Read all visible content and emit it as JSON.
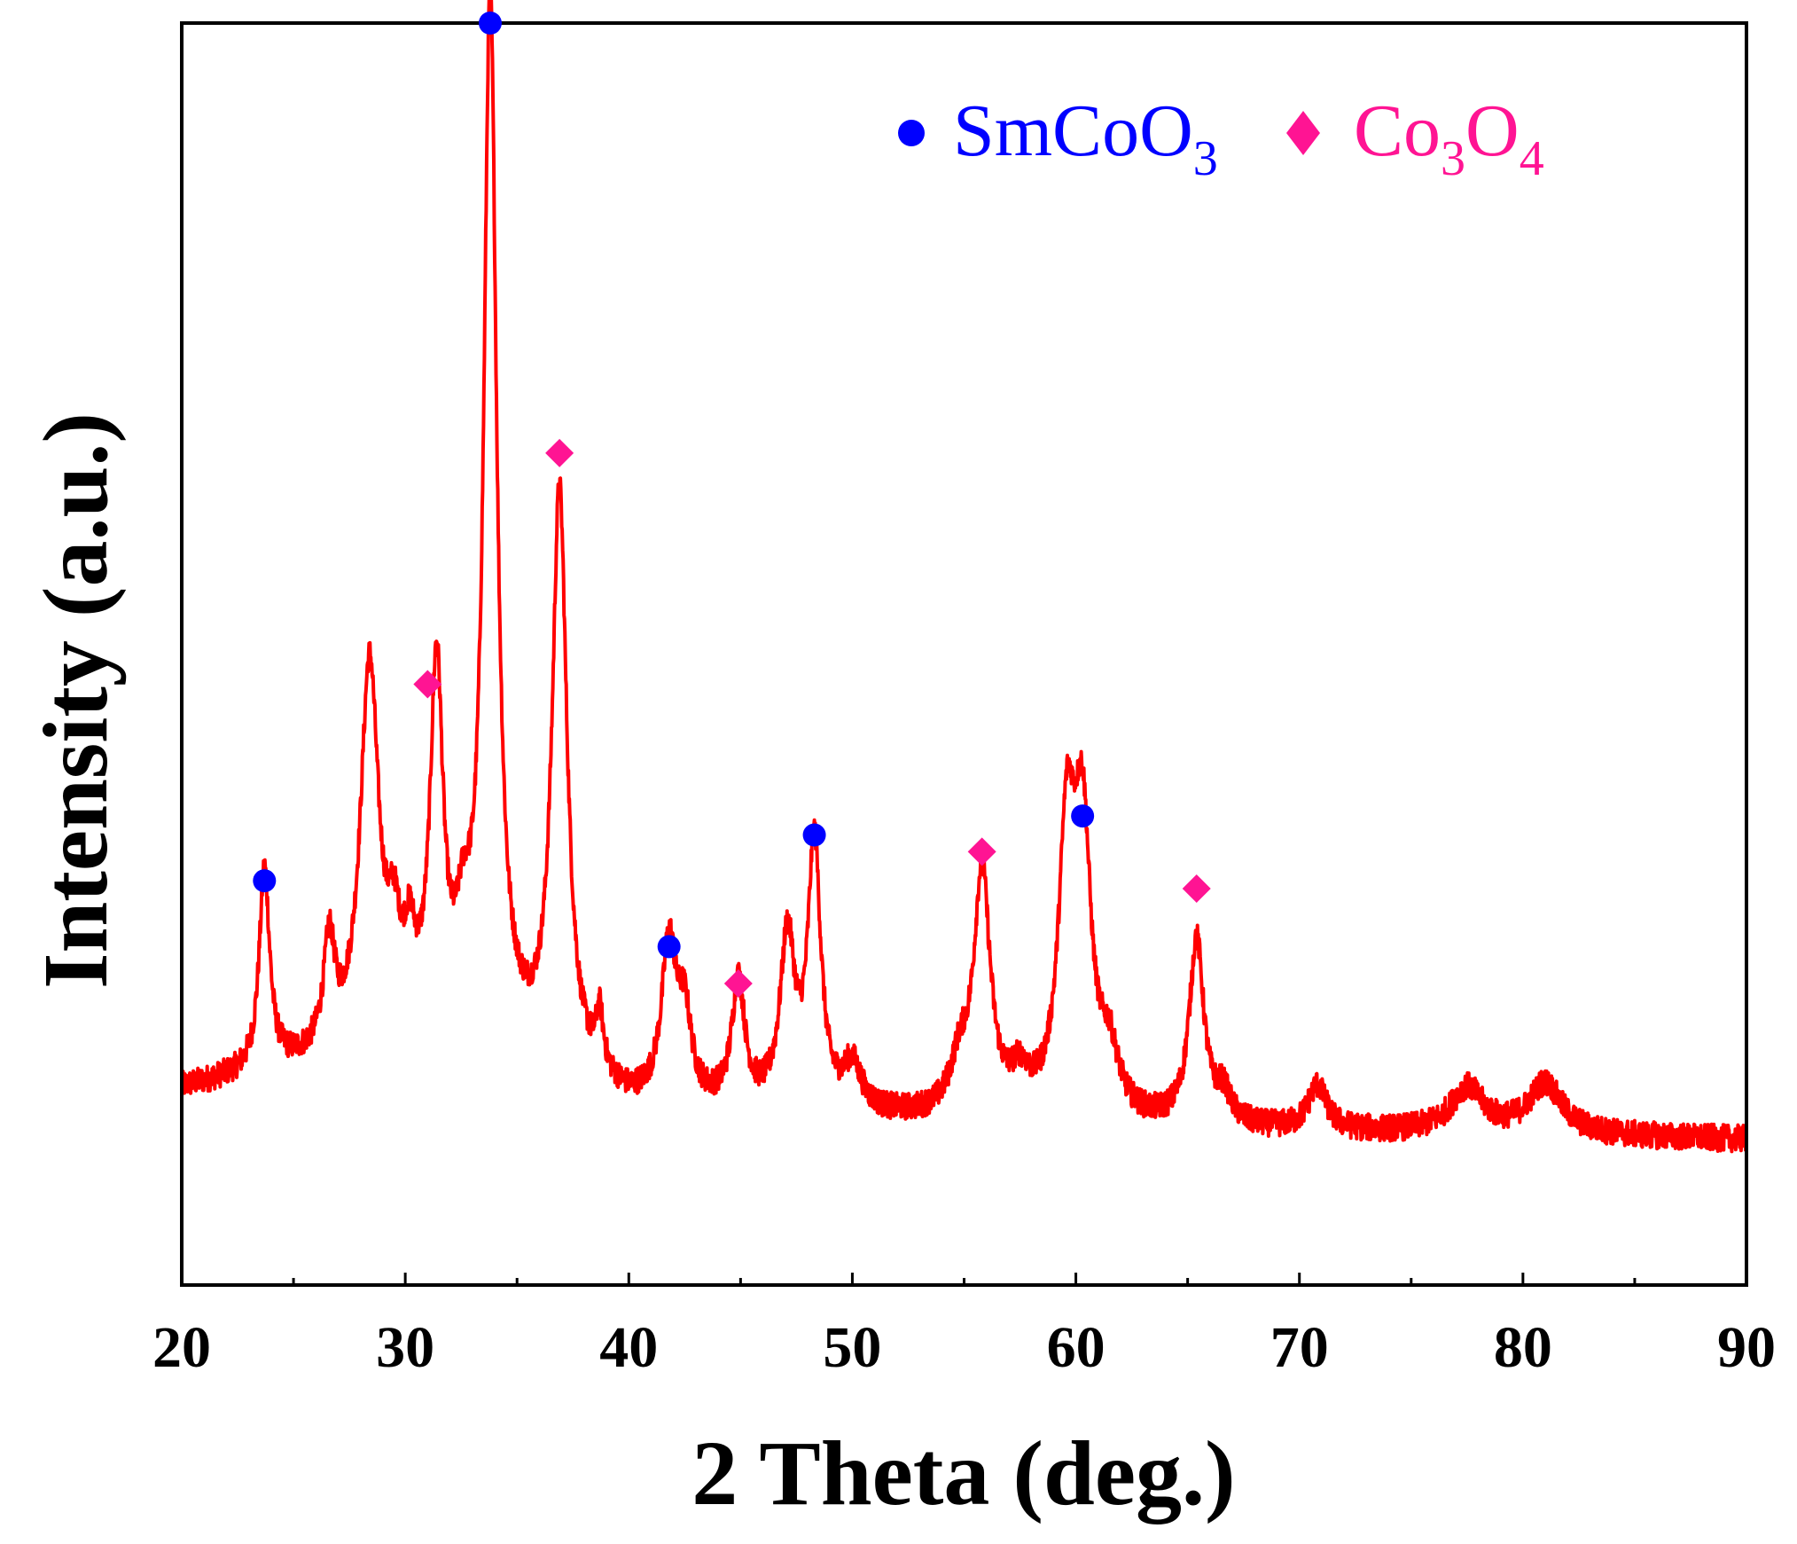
{
  "chart_data": {
    "type": "line",
    "title": "",
    "xlabel": "2 Theta (deg.)",
    "ylabel": "Intensity (a.u.)",
    "xlim": [
      20,
      90
    ],
    "ylim": [
      -130,
      1000
    ],
    "x_ticks": [
      "20",
      "30",
      "40",
      "50",
      "60",
      "70",
      "80",
      "90"
    ],
    "x_minor_tick_step": 5,
    "grid": false,
    "line_color": "#ff0000",
    "legend_position": "top-right",
    "legend": [
      {
        "name": "SmCoO3",
        "base": "SmCoO",
        "sub": "3",
        "marker": "circle",
        "color": "#0000ff"
      },
      {
        "name": "Co3O4",
        "base": "Co",
        "sub1": "3",
        "mid": "O",
        "sub2": "4",
        "marker": "diamond",
        "color": "#ff1493"
      }
    ],
    "baseline": [
      [
        20,
        45
      ],
      [
        30,
        80
      ],
      [
        35,
        70
      ],
      [
        40,
        28
      ],
      [
        50,
        18
      ],
      [
        60,
        12
      ],
      [
        70,
        6
      ],
      [
        80,
        4
      ],
      [
        90,
        0
      ]
    ],
    "peaks": [
      {
        "x": 23.7,
        "height": 180,
        "width": 0.28
      },
      {
        "x": 26.6,
        "height": 95,
        "width": 0.3
      },
      {
        "x": 28.4,
        "height": 340,
        "width": 0.5
      },
      {
        "x": 29.5,
        "height": 70,
        "width": 0.35
      },
      {
        "x": 30.2,
        "height": 60,
        "width": 0.3
      },
      {
        "x": 31.4,
        "height": 325,
        "width": 0.35
      },
      {
        "x": 32.6,
        "height": 70,
        "width": 0.4
      },
      {
        "x": 33.8,
        "height": 930,
        "width": 0.35
      },
      {
        "x": 36.9,
        "height": 515,
        "width": 0.4
      },
      {
        "x": 38.7,
        "height": 50,
        "width": 0.2
      },
      {
        "x": 41.8,
        "height": 140,
        "width": 0.4
      },
      {
        "x": 42.5,
        "height": 70,
        "width": 0.35
      },
      {
        "x": 44.9,
        "height": 110,
        "width": 0.35
      },
      {
        "x": 47.1,
        "height": 150,
        "width": 0.4
      },
      {
        "x": 48.3,
        "height": 235,
        "width": 0.35
      },
      {
        "x": 50.0,
        "height": 40,
        "width": 0.5
      },
      {
        "x": 54.8,
        "height": 40,
        "width": 0.5
      },
      {
        "x": 55.8,
        "height": 215,
        "width": 0.45
      },
      {
        "x": 57.5,
        "height": 30,
        "width": 0.5
      },
      {
        "x": 59.6,
        "height": 240,
        "width": 0.45
      },
      {
        "x": 60.3,
        "height": 240,
        "width": 0.45
      },
      {
        "x": 61.5,
        "height": 50,
        "width": 0.5
      },
      {
        "x": 65.4,
        "height": 165,
        "width": 0.4
      },
      {
        "x": 66.6,
        "height": 25,
        "width": 0.4
      },
      {
        "x": 70.8,
        "height": 40,
        "width": 0.5
      },
      {
        "x": 77.5,
        "height": 40,
        "width": 0.9
      },
      {
        "x": 81.0,
        "height": 45,
        "width": 0.9
      }
    ],
    "noise_amplitude": 12,
    "markers": [
      {
        "phase": "SmCoO3",
        "shape": "circle",
        "x": 23.7,
        "y": 232
      },
      {
        "phase": "SmCoO3",
        "shape": "circle",
        "x": 33.8,
        "y": 1000
      },
      {
        "phase": "SmCoO3",
        "shape": "circle",
        "x": 41.8,
        "y": 173
      },
      {
        "phase": "SmCoO3",
        "shape": "circle",
        "x": 48.3,
        "y": 273
      },
      {
        "phase": "SmCoO3",
        "shape": "circle",
        "x": 60.3,
        "y": 290
      },
      {
        "phase": "Co3O4",
        "shape": "diamond",
        "x": 31.0,
        "y": 408
      },
      {
        "phase": "Co3O4",
        "shape": "diamond",
        "x": 36.9,
        "y": 615
      },
      {
        "phase": "Co3O4",
        "shape": "diamond",
        "x": 44.9,
        "y": 140
      },
      {
        "phase": "Co3O4",
        "shape": "diamond",
        "x": 55.8,
        "y": 258
      },
      {
        "phase": "Co3O4",
        "shape": "diamond",
        "x": 65.4,
        "y": 225
      }
    ]
  }
}
